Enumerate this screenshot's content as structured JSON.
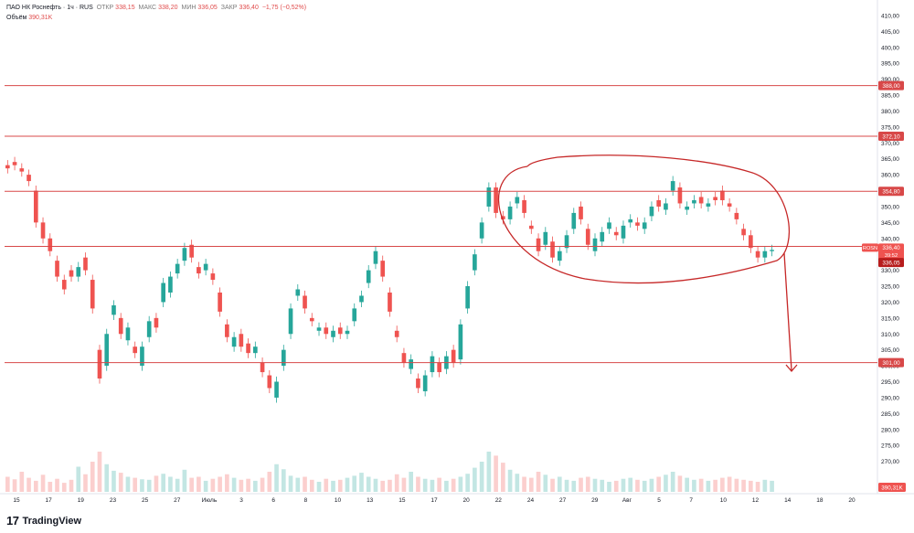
{
  "header": {
    "symbol": "ПАО НК Роснефть · 1ч · RUS",
    "open_label": "ОТКР",
    "open_value": "338,15",
    "high_label": "МАКС",
    "high_value": "338,20",
    "low_label": "МИН",
    "low_value": "336,05",
    "close_label": "ЗАКР",
    "close_value": "336,40",
    "change": "−1,75 (−0,52%)",
    "volume_label": "Объём",
    "volume_value": "390,31K"
  },
  "footer": {
    "logo": "17",
    "brand": "TradingView"
  },
  "colors": {
    "up": "#26a69a",
    "down": "#ef5350",
    "level": "#d84848",
    "annotation": "#c62828",
    "axis_text": "#131722"
  },
  "chart_data": {
    "type": "candlestick",
    "ylim": [
      265,
      412
    ],
    "y_ticks": [
      "410,00",
      "405,00",
      "400,00",
      "395,00",
      "390,00",
      "385,00",
      "380,00",
      "375,00",
      "370,00",
      "365,00",
      "360,00",
      "355,00",
      "350,00",
      "345,00",
      "340,00",
      "335,00",
      "330,00",
      "325,00",
      "320,00",
      "315,00",
      "310,00",
      "305,00",
      "300,00",
      "295,00",
      "290,00",
      "285,00",
      "280,00",
      "275,00",
      "270,00"
    ],
    "x_ticks": [
      "15",
      "17",
      "19",
      "23",
      "25",
      "27",
      "Июль",
      "3",
      "6",
      "8",
      "10",
      "13",
      "15",
      "17",
      "20",
      "22",
      "24",
      "27",
      "29",
      "Авг",
      "5",
      "7",
      "10",
      "12",
      "14",
      "18",
      "20"
    ],
    "horizontal_levels": [
      {
        "value": 388.0,
        "label": "388,00"
      },
      {
        "value": 372.1,
        "label": "372,10"
      },
      {
        "value": 354.8,
        "label": "354,80"
      },
      {
        "value": 337.5,
        "label": ""
      },
      {
        "value": 301.0,
        "label": "301,00"
      }
    ],
    "price_tags": {
      "symbol_tag": "ROSN",
      "last_price": "336,40",
      "countdown": "39:52",
      "low_price": "336,05",
      "volume_tag": "390,31K"
    },
    "price_path": [
      [
        363,
        362
      ],
      [
        364,
        363
      ],
      [
        362,
        361
      ],
      [
        360,
        358
      ],
      [
        355,
        345
      ],
      [
        345,
        340
      ],
      [
        340,
        336
      ],
      [
        333,
        328
      ],
      [
        327,
        324
      ],
      [
        330,
        328
      ],
      [
        328,
        331
      ],
      [
        334,
        330
      ],
      [
        327,
        318
      ],
      [
        305,
        296
      ],
      [
        300,
        310
      ],
      [
        316,
        319
      ],
      [
        315,
        310
      ],
      [
        308,
        312
      ],
      [
        306,
        304
      ],
      [
        300,
        306
      ],
      [
        309,
        314
      ],
      [
        315,
        312
      ],
      [
        320,
        326
      ],
      [
        323,
        328
      ],
      [
        329,
        332
      ],
      [
        333,
        337
      ],
      [
        338,
        334
      ],
      [
        331,
        329
      ],
      [
        330,
        332
      ],
      [
        329,
        327
      ],
      [
        323,
        317
      ],
      [
        313,
        309
      ],
      [
        306,
        309
      ],
      [
        310,
        306
      ],
      [
        307,
        304
      ],
      [
        304,
        306
      ],
      [
        301,
        298
      ],
      [
        297,
        293
      ],
      [
        290,
        295
      ],
      [
        300,
        305
      ],
      [
        310,
        318
      ],
      [
        322,
        324
      ],
      [
        322,
        318
      ],
      [
        315,
        314
      ],
      [
        311,
        312
      ],
      [
        312,
        310
      ],
      [
        309,
        311
      ],
      [
        312,
        310
      ],
      [
        310,
        311
      ],
      [
        314,
        318
      ],
      [
        320,
        322
      ],
      [
        326,
        330
      ],
      [
        332,
        336
      ],
      [
        333,
        328
      ],
      [
        323,
        317
      ],
      [
        311,
        309
      ],
      [
        304,
        301
      ],
      [
        299,
        302
      ],
      [
        296,
        293
      ],
      [
        292,
        297
      ],
      [
        298,
        303
      ],
      [
        301,
        298
      ],
      [
        299,
        303
      ],
      [
        305,
        301
      ],
      [
        302,
        313
      ],
      [
        318,
        325
      ],
      [
        330,
        335
      ],
      [
        340,
        345
      ],
      [
        350,
        356
      ],
      [
        356,
        348
      ],
      [
        347,
        346
      ],
      [
        346,
        350
      ],
      [
        351,
        353
      ],
      [
        352,
        348
      ],
      [
        344,
        343
      ],
      [
        340,
        336
      ],
      [
        338,
        342
      ],
      [
        339,
        334
      ],
      [
        333,
        336
      ],
      [
        337,
        341
      ],
      [
        343,
        348
      ],
      [
        350,
        346
      ],
      [
        343,
        338
      ],
      [
        336,
        340
      ],
      [
        339,
        342
      ],
      [
        343,
        345
      ],
      [
        342,
        341
      ],
      [
        340,
        344
      ],
      [
        345,
        346
      ],
      [
        345,
        344
      ],
      [
        343,
        345
      ],
      [
        347,
        350
      ],
      [
        352,
        350
      ],
      [
        349,
        351
      ],
      [
        355,
        358
      ],
      [
        356,
        351
      ],
      [
        349,
        350
      ],
      [
        351,
        352
      ],
      [
        353,
        351
      ],
      [
        350,
        351
      ],
      [
        353,
        352
      ],
      [
        355,
        352
      ],
      [
        351,
        350
      ],
      [
        348,
        346
      ],
      [
        343,
        341
      ],
      [
        341,
        337
      ],
      [
        336,
        334
      ],
      [
        334,
        336
      ],
      [
        336,
        336.4
      ]
    ],
    "volumes": [
      30,
      25,
      40,
      28,
      22,
      34,
      20,
      26,
      18,
      24,
      50,
      35,
      60,
      80,
      55,
      42,
      38,
      30,
      28,
      25,
      24,
      32,
      36,
      30,
      26,
      44,
      28,
      30,
      22,
      26,
      30,
      35,
      28,
      24,
      26,
      22,
      28,
      40,
      55,
      45,
      32,
      28,
      30,
      24,
      20,
      26,
      22,
      24,
      28,
      32,
      38,
      30,
      26,
      22,
      24,
      35,
      28,
      40,
      30,
      26,
      24,
      28,
      22,
      26,
      30,
      36,
      48,
      60,
      80,
      72,
      58,
      44,
      36,
      30,
      28,
      40,
      34,
      26,
      30,
      24,
      22,
      28,
      30,
      26,
      24,
      20,
      22,
      26,
      28,
      24,
      22,
      26,
      30,
      34,
      40,
      32,
      28,
      24,
      26,
      22,
      24,
      28,
      30,
      26,
      24,
      22,
      20,
      24,
      22
    ],
    "annotations": [
      "ellipse around consolidation range",
      "arrow down from 336,40 toward 301,00"
    ]
  }
}
